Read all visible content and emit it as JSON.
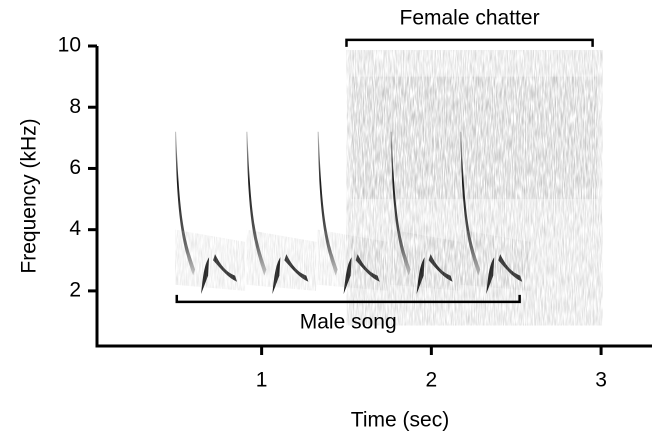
{
  "chart_data": {
    "type": "spectrogram",
    "xlabel": "Time (sec)",
    "ylabel": "Frequency (kHz)",
    "xlim": [
      0.03,
      3.3
    ],
    "ylim": [
      0.2,
      10
    ],
    "xticks": [
      1,
      2,
      3
    ],
    "yticks": [
      2,
      4,
      6,
      8,
      10
    ],
    "syllable_times": [
      0.49,
      0.91,
      1.33,
      1.76,
      2.17
    ],
    "annotations": [
      {
        "text": "Female chatter",
        "x": [
          1.5,
          2.95
        ],
        "y": 10.2
      },
      {
        "text": "Male song",
        "x": [
          0.5,
          2.52
        ],
        "y": 1.64
      }
    ]
  }
}
